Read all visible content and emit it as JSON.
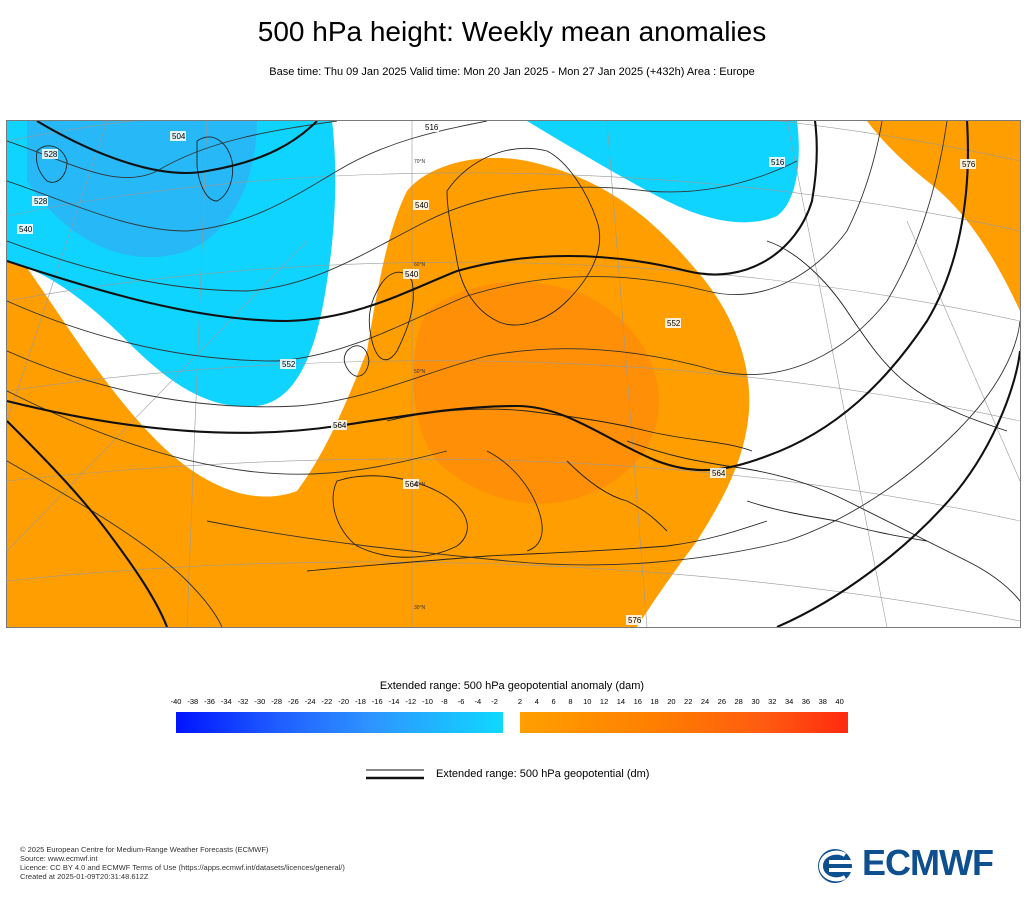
{
  "title": "500 hPa height: Weekly mean anomalies",
  "subtitle": "Base time: Thu 09 Jan 2025 Valid time: Mon 20 Jan 2025 - Mon 27 Jan 2025 (+432h) Area : Europe",
  "map": {
    "contour_labels": [
      "504",
      "528",
      "540",
      "552",
      "564",
      "576",
      "516",
      "540",
      "552",
      "564",
      "576",
      "516",
      "528",
      "540",
      "564"
    ],
    "lat_labels": [
      "70°N",
      "60°N",
      "50°N",
      "40°N",
      "30°N"
    ],
    "colors": {
      "negative_strong": "#3aa0f0",
      "negative_weak": "#0fd4ff",
      "positive_weak": "#ff9e00",
      "positive_strong": "#ff7a10",
      "coast": "#222222",
      "graticule": "#9a9a9a"
    }
  },
  "colorbar": {
    "title": "Extended range: 500 hPa geopotential anomaly (dam)",
    "ticks": [
      "-40",
      "-38",
      "-36",
      "-34",
      "-32",
      "-30",
      "-28",
      "-26",
      "-24",
      "-22",
      "-20",
      "-18",
      "-16",
      "-14",
      "-12",
      "-10",
      "-8",
      "-6",
      "-4",
      "-2",
      "2",
      "4",
      "6",
      "8",
      "10",
      "12",
      "14",
      "16",
      "18",
      "20",
      "22",
      "24",
      "26",
      "28",
      "30",
      "32",
      "34",
      "36",
      "38",
      "40"
    ]
  },
  "legend": {
    "line_label": "Extended range: 500 hPa geopotential (dm)"
  },
  "footer": {
    "line1": "© 2025 European Centre for Medium-Range Weather Forecasts (ECMWF)",
    "line2": "Source: www.ecmwf.int",
    "line3": "Licence: CC BY 4.0 and ECMWF Terms of Use (https://apps.ecmwf.int/datasets/licences/general/)",
    "line4": "Created at 2025-01-09T20:31:48.612Z"
  },
  "logo": {
    "text": "ECMWF",
    "icon": "ecmwf-logo-icon"
  }
}
